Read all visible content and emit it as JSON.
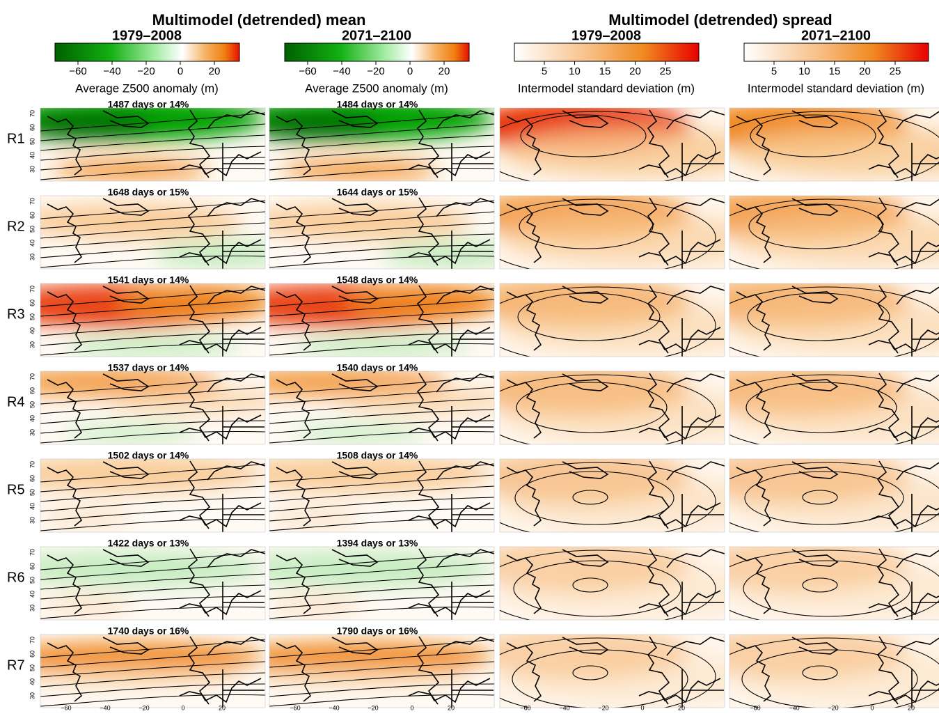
{
  "groups": [
    {
      "title": "Multimodel (detrended) mean"
    },
    {
      "title": "Multimodel (detrended) spread"
    }
  ],
  "columns": [
    {
      "period": "1979–2008",
      "colorbar": {
        "ticks": [
          "−60",
          "−40",
          "−20",
          "0",
          "20"
        ],
        "label": "Average Z500 anomaly (m)"
      }
    },
    {
      "period": "2071–2100",
      "colorbar": {
        "ticks": [
          "−60",
          "−40",
          "−20",
          "0",
          "20"
        ],
        "label": "Average Z500 anomaly (m)"
      }
    },
    {
      "period": "1979–2008",
      "colorbar": {
        "ticks": [
          "5",
          "10",
          "15",
          "20",
          "25"
        ],
        "label": "Intermodel standard deviation (m)"
      }
    },
    {
      "period": "2071–2100",
      "colorbar": {
        "ticks": [
          "5",
          "10",
          "15",
          "20",
          "25"
        ],
        "label": "Intermodel standard deviation (m)"
      }
    }
  ],
  "rows": [
    {
      "label": "R1",
      "captions": [
        "1487 days or 14%",
        "1484 days or 14%"
      ]
    },
    {
      "label": "R2",
      "captions": [
        "1648 days or 15%",
        "1644 days or 15%"
      ]
    },
    {
      "label": "R3",
      "captions": [
        "1541 days or 14%",
        "1548 days or 14%"
      ]
    },
    {
      "label": "R4",
      "captions": [
        "1537 days or 14%",
        "1540 days or 14%"
      ]
    },
    {
      "label": "R5",
      "captions": [
        "1502 days or 14%",
        "1508 days or 14%"
      ]
    },
    {
      "label": "R6",
      "captions": [
        "1422 days or 13%",
        "1394 days or 13%"
      ]
    },
    {
      "label": "R7",
      "captions": [
        "1740 days or 16%",
        "1790 days or 16%"
      ]
    }
  ],
  "lat_ticks": [
    "30",
    "40",
    "50",
    "60",
    "70"
  ],
  "lon_ticks": [
    "−60",
    "−40",
    "−20",
    "0",
    "20"
  ]
}
